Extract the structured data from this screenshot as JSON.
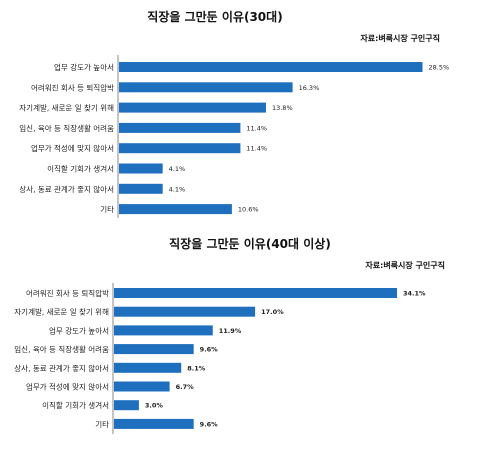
{
  "chart_data": [
    {
      "type": "bar",
      "orientation": "horizontal",
      "title": "직장을 그만둔 이유(30대)",
      "source": "자료:벼룩시장 구인구직",
      "categories": [
        "업무 강도가 높아서",
        "어려워진 회사 등 퇴직압박",
        "자기계발, 새로운 일 찾기 위해",
        "임신, 육아 등 직장생활 어려움",
        "업무가 적성에 맞지 않아서",
        "이직할 기회가 생겨서",
        "상사, 동료 관계가 좋지 않아서",
        "기타"
      ],
      "values": [
        28.5,
        16.3,
        13.8,
        11.4,
        11.4,
        4.1,
        4.1,
        10.6
      ],
      "value_labels": [
        "28.5%",
        "16.3%",
        "13.8%",
        "11.4%",
        "11.4%",
        "4.1%",
        "4.1%",
        "10.6%"
      ],
      "xlim": [
        0,
        30
      ],
      "bar_color": "#1f6fbf"
    },
    {
      "type": "bar",
      "orientation": "horizontal",
      "title": "직장을 그만둔 이유(40대 이상)",
      "source": "자료:벼룩시장 구인구직",
      "categories": [
        "어려워진 회사 등 퇴직압박",
        "자기계발, 새로운 일 찾기 위해",
        "업무 강도가 높아서",
        "임신, 육아 등 직장생활 어려움",
        "상사, 동료 관계가 좋지 않아서",
        "업무가 적성에 맞지 않아서",
        "이직할 기회가 생겨서",
        "기타"
      ],
      "values": [
        34.1,
        17.0,
        11.9,
        9.6,
        8.1,
        6.7,
        3.0,
        9.6
      ],
      "value_labels": [
        "34.1%",
        "17.0%",
        "11.9%",
        "9.6%",
        "8.1%",
        "6.7%",
        "3.0%",
        "9.6%"
      ],
      "xlim": [
        0,
        36
      ],
      "bar_color": "#1f6fbf"
    }
  ]
}
